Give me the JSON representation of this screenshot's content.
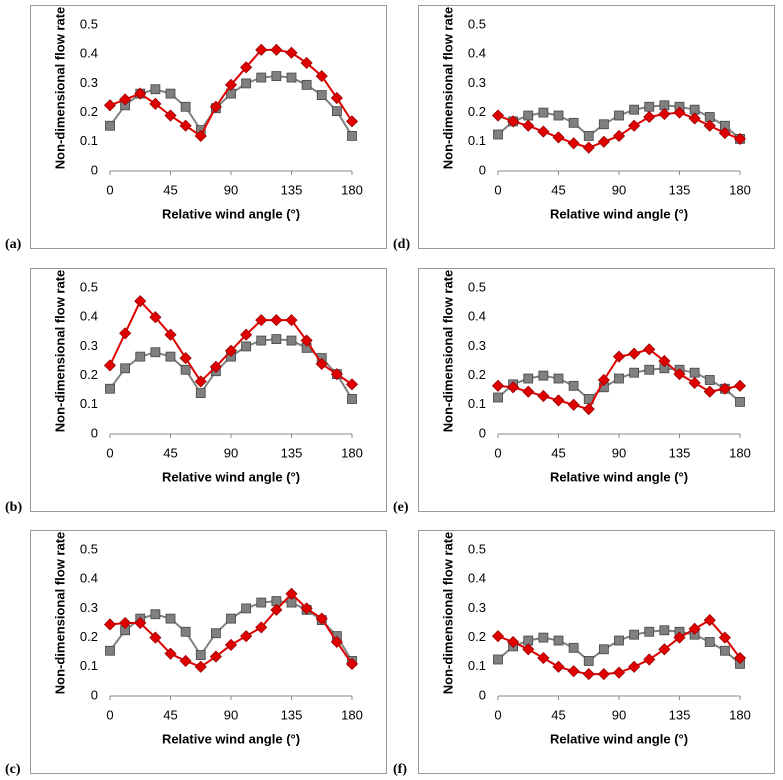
{
  "chart_data": [
    {
      "type": "line",
      "label": "(a)",
      "x_label": "Relative wind angle (°)",
      "y_label": "Non-dimensional flow rate",
      "x": [
        0,
        11.25,
        22.5,
        33.75,
        45,
        56.25,
        67.5,
        78.75,
        90,
        101.25,
        112.5,
        123.75,
        135,
        146.25,
        157.5,
        168.75,
        180
      ],
      "xlim": [
        0,
        180
      ],
      "xticks": [
        0,
        45,
        90,
        135,
        180
      ],
      "ylim": [
        0,
        0.5
      ],
      "yticks": [
        0,
        0.1,
        0.2,
        0.3,
        0.4,
        0.5
      ],
      "series": [
        {
          "color": "#808080",
          "marker": "square",
          "values": [
            0.155,
            0.225,
            0.265,
            0.28,
            0.265,
            0.22,
            0.14,
            0.215,
            0.265,
            0.3,
            0.32,
            0.325,
            0.32,
            0.295,
            0.26,
            0.205,
            0.12
          ]
        },
        {
          "color": "#e00000",
          "marker": "diamond",
          "values": [
            0.225,
            0.245,
            0.265,
            0.23,
            0.19,
            0.155,
            0.12,
            0.22,
            0.295,
            0.355,
            0.415,
            0.415,
            0.405,
            0.37,
            0.325,
            0.25,
            0.17
          ]
        }
      ]
    },
    {
      "type": "line",
      "label": "(b)",
      "x_label": "Relative wind angle (°)",
      "y_label": "Non-dimensional flow rate",
      "x": [
        0,
        11.25,
        22.5,
        33.75,
        45,
        56.25,
        67.5,
        78.75,
        90,
        101.25,
        112.5,
        123.75,
        135,
        146.25,
        157.5,
        168.75,
        180
      ],
      "xlim": [
        0,
        180
      ],
      "xticks": [
        0,
        45,
        90,
        135,
        180
      ],
      "ylim": [
        0,
        0.5
      ],
      "yticks": [
        0,
        0.1,
        0.2,
        0.3,
        0.4,
        0.5
      ],
      "series": [
        {
          "color": "#808080",
          "marker": "square",
          "values": [
            0.155,
            0.225,
            0.265,
            0.28,
            0.265,
            0.22,
            0.14,
            0.215,
            0.265,
            0.3,
            0.32,
            0.325,
            0.32,
            0.295,
            0.26,
            0.205,
            0.12
          ]
        },
        {
          "color": "#e00000",
          "marker": "diamond",
          "values": [
            0.235,
            0.345,
            0.455,
            0.4,
            0.34,
            0.26,
            0.18,
            0.23,
            0.285,
            0.34,
            0.39,
            0.39,
            0.39,
            0.32,
            0.24,
            0.205,
            0.17
          ]
        }
      ]
    },
    {
      "type": "line",
      "label": "(c)",
      "x_label": "Relative wind angle (°)",
      "y_label": "Non-dimensional flow rate",
      "x": [
        0,
        11.25,
        22.5,
        33.75,
        45,
        56.25,
        67.5,
        78.75,
        90,
        101.25,
        112.5,
        123.75,
        135,
        146.25,
        157.5,
        168.75,
        180
      ],
      "xlim": [
        0,
        180
      ],
      "xticks": [
        0,
        45,
        90,
        135,
        180
      ],
      "ylim": [
        0,
        0.5
      ],
      "yticks": [
        0,
        0.1,
        0.2,
        0.3,
        0.4,
        0.5
      ],
      "series": [
        {
          "color": "#808080",
          "marker": "square",
          "values": [
            0.155,
            0.225,
            0.265,
            0.28,
            0.265,
            0.22,
            0.14,
            0.215,
            0.265,
            0.3,
            0.32,
            0.325,
            0.32,
            0.295,
            0.26,
            0.205,
            0.12
          ]
        },
        {
          "color": "#e00000",
          "marker": "diamond",
          "values": [
            0.245,
            0.25,
            0.25,
            0.2,
            0.145,
            0.12,
            0.1,
            0.135,
            0.175,
            0.205,
            0.235,
            0.295,
            0.35,
            0.3,
            0.265,
            0.185,
            0.11
          ]
        }
      ]
    },
    {
      "type": "line",
      "label": "(d)",
      "x_label": "Relative wind angle (°)",
      "y_label": "Non-dimensional flow rate",
      "x": [
        0,
        11.25,
        22.5,
        33.75,
        45,
        56.25,
        67.5,
        78.75,
        90,
        101.25,
        112.5,
        123.75,
        135,
        146.25,
        157.5,
        168.75,
        180
      ],
      "xlim": [
        0,
        180
      ],
      "xticks": [
        0,
        45,
        90,
        135,
        180
      ],
      "ylim": [
        0,
        0.5
      ],
      "yticks": [
        0,
        0.1,
        0.2,
        0.3,
        0.4,
        0.5
      ],
      "series": [
        {
          "color": "#808080",
          "marker": "square",
          "values": [
            0.125,
            0.17,
            0.19,
            0.2,
            0.19,
            0.165,
            0.12,
            0.16,
            0.19,
            0.21,
            0.22,
            0.225,
            0.22,
            0.21,
            0.185,
            0.155,
            0.11
          ]
        },
        {
          "color": "#e00000",
          "marker": "diamond",
          "values": [
            0.19,
            0.17,
            0.155,
            0.135,
            0.115,
            0.095,
            0.08,
            0.1,
            0.12,
            0.155,
            0.185,
            0.195,
            0.2,
            0.18,
            0.155,
            0.13,
            0.11
          ]
        }
      ]
    },
    {
      "type": "line",
      "label": "(e)",
      "x_label": "Relative wind angle (°)",
      "y_label": "Non-dimensional flow rate",
      "x": [
        0,
        11.25,
        22.5,
        33.75,
        45,
        56.25,
        67.5,
        78.75,
        90,
        101.25,
        112.5,
        123.75,
        135,
        146.25,
        157.5,
        168.75,
        180
      ],
      "xlim": [
        0,
        180
      ],
      "xticks": [
        0,
        45,
        90,
        135,
        180
      ],
      "ylim": [
        0,
        0.5
      ],
      "yticks": [
        0,
        0.1,
        0.2,
        0.3,
        0.4,
        0.5
      ],
      "series": [
        {
          "color": "#808080",
          "marker": "square",
          "values": [
            0.125,
            0.17,
            0.19,
            0.2,
            0.19,
            0.165,
            0.12,
            0.16,
            0.19,
            0.21,
            0.22,
            0.225,
            0.22,
            0.21,
            0.185,
            0.155,
            0.11
          ]
        },
        {
          "color": "#e00000",
          "marker": "diamond",
          "values": [
            0.165,
            0.16,
            0.145,
            0.13,
            0.115,
            0.1,
            0.085,
            0.185,
            0.265,
            0.275,
            0.29,
            0.25,
            0.205,
            0.175,
            0.145,
            0.155,
            0.165
          ]
        }
      ]
    },
    {
      "type": "line",
      "label": "(f)",
      "x_label": "Relative wind angle (°)",
      "y_label": "Non-dimensional flow rate",
      "x": [
        0,
        11.25,
        22.5,
        33.75,
        45,
        56.25,
        67.5,
        78.75,
        90,
        101.25,
        112.5,
        123.75,
        135,
        146.25,
        157.5,
        168.75,
        180
      ],
      "xlim": [
        0,
        180
      ],
      "xticks": [
        0,
        45,
        90,
        135,
        180
      ],
      "ylim": [
        0,
        0.5
      ],
      "yticks": [
        0,
        0.1,
        0.2,
        0.3,
        0.4,
        0.5
      ],
      "series": [
        {
          "color": "#808080",
          "marker": "square",
          "values": [
            0.125,
            0.17,
            0.19,
            0.2,
            0.19,
            0.165,
            0.12,
            0.16,
            0.19,
            0.21,
            0.22,
            0.225,
            0.22,
            0.21,
            0.185,
            0.155,
            0.11
          ]
        },
        {
          "color": "#e00000",
          "marker": "diamond",
          "values": [
            0.205,
            0.185,
            0.16,
            0.13,
            0.1,
            0.085,
            0.075,
            0.075,
            0.08,
            0.1,
            0.125,
            0.16,
            0.2,
            0.23,
            0.26,
            0.2,
            0.13
          ]
        }
      ]
    }
  ]
}
